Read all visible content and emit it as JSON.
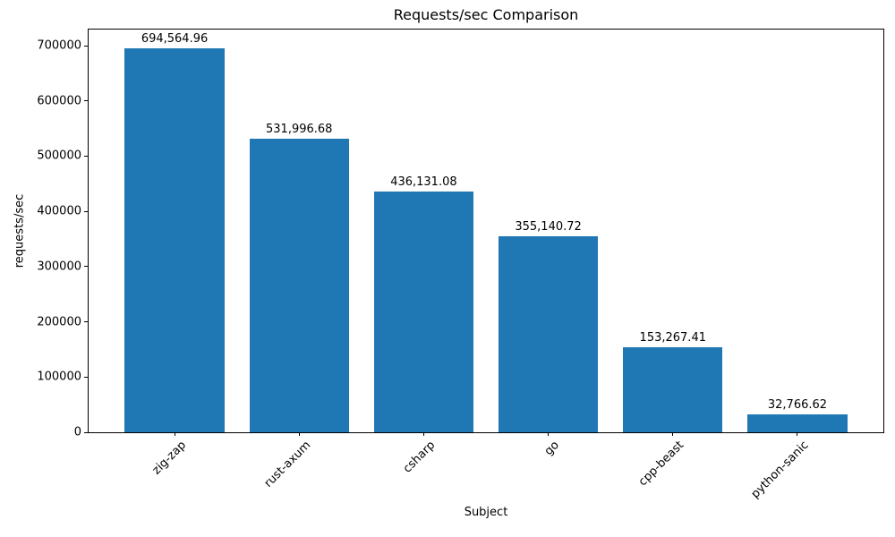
{
  "chart_data": {
    "type": "bar",
    "title": "Requests/sec Comparison",
    "xlabel": "Subject",
    "ylabel": "requests/sec",
    "categories": [
      "zig-zap",
      "rust-axum",
      "csharp",
      "go",
      "cpp-beast",
      "python-sanic"
    ],
    "values": [
      694564.96,
      531996.68,
      436131.08,
      355140.72,
      153267.41,
      32766.62
    ],
    "value_labels": [
      "694,564.96",
      "531,996.68",
      "436,131.08",
      "355,140.72",
      "153,267.41",
      "32,766.62"
    ],
    "bar_color": "#1f77b4",
    "axis_color": "#000000",
    "background_color": "#ffffff",
    "ylim": [
      0,
      729293
    ],
    "yticks": [
      0,
      100000,
      200000,
      300000,
      400000,
      500000,
      600000,
      700000
    ],
    "ytick_labels": [
      "0",
      "100000",
      "200000",
      "300000",
      "400000",
      "500000",
      "600000",
      "700000"
    ],
    "xtick_label_rotation_deg": 45,
    "bar_width_fraction": 0.8,
    "grid": false,
    "legend": null
  }
}
